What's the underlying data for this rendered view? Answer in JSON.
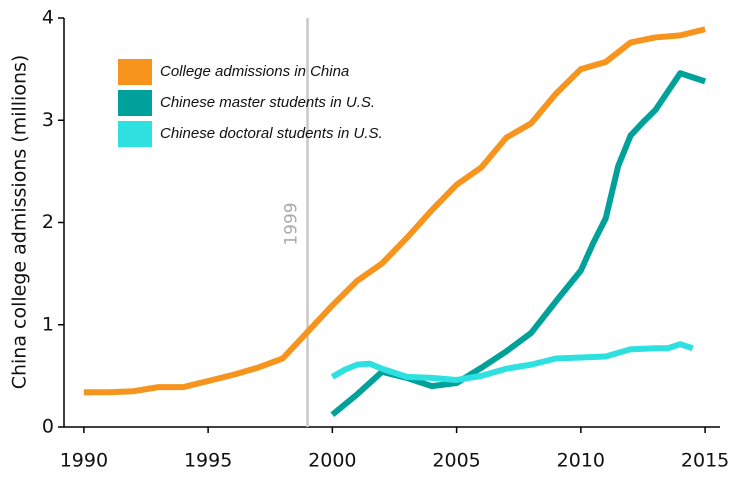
{
  "chart_data": {
    "type": "line",
    "y_label": "China college admissions (millions)",
    "xlim": [
      1989.2,
      2015.6
    ],
    "ylim": [
      0,
      4
    ],
    "xticks": [
      1990,
      1995,
      2000,
      2005,
      2010,
      2015
    ],
    "yticks": [
      0,
      1,
      2,
      3,
      4
    ],
    "grid": false,
    "legend": "upper left",
    "annotation": {
      "x": 1999,
      "label": "1999",
      "color": "#c8c8c8"
    },
    "series": [
      {
        "name": "College admissions in China",
        "color": "#f7941d",
        "x": [
          1990,
          1991,
          1992,
          1993,
          1994,
          1995,
          1996,
          1997,
          1998,
          1999,
          2000,
          2001,
          2002,
          2003,
          2004,
          2005,
          2006,
          2007,
          2008,
          2009,
          2010,
          2011,
          2012,
          2013,
          2014,
          2015
        ],
        "values": [
          0.34,
          0.34,
          0.35,
          0.39,
          0.39,
          0.45,
          0.51,
          0.58,
          0.67,
          0.93,
          1.19,
          1.43,
          1.6,
          1.85,
          2.12,
          2.37,
          2.54,
          2.83,
          2.97,
          3.26,
          3.5,
          3.57,
          3.76,
          3.81,
          3.83,
          3.89
        ]
      },
      {
        "name": "Chinese master students in U.S.",
        "color": "#00a19a",
        "x": [
          2000,
          2001,
          2002,
          2003,
          2004,
          2005,
          2006,
          2007,
          2008,
          2009,
          2010,
          2010.5,
          2011,
          2011.5,
          2012,
          2012.5,
          2013,
          2014,
          2015
        ],
        "values": [
          0.12,
          0.32,
          0.54,
          0.48,
          0.4,
          0.43,
          0.58,
          0.74,
          0.92,
          1.23,
          1.53,
          1.8,
          2.04,
          2.55,
          2.85,
          2.98,
          3.1,
          3.46,
          3.38
        ]
      },
      {
        "name": "Chinese doctoral students in U.S.",
        "color": "#2fe0e0",
        "x": [
          2000,
          2000.5,
          2001,
          2001.5,
          2002,
          2003,
          2004,
          2005,
          2006,
          2007,
          2008,
          2009,
          2010,
          2011,
          2012,
          2013,
          2013.5,
          2014,
          2014.5
        ],
        "values": [
          0.49,
          0.56,
          0.61,
          0.62,
          0.57,
          0.49,
          0.48,
          0.46,
          0.5,
          0.57,
          0.61,
          0.67,
          0.68,
          0.69,
          0.76,
          0.77,
          0.77,
          0.81,
          0.77
        ]
      }
    ]
  }
}
